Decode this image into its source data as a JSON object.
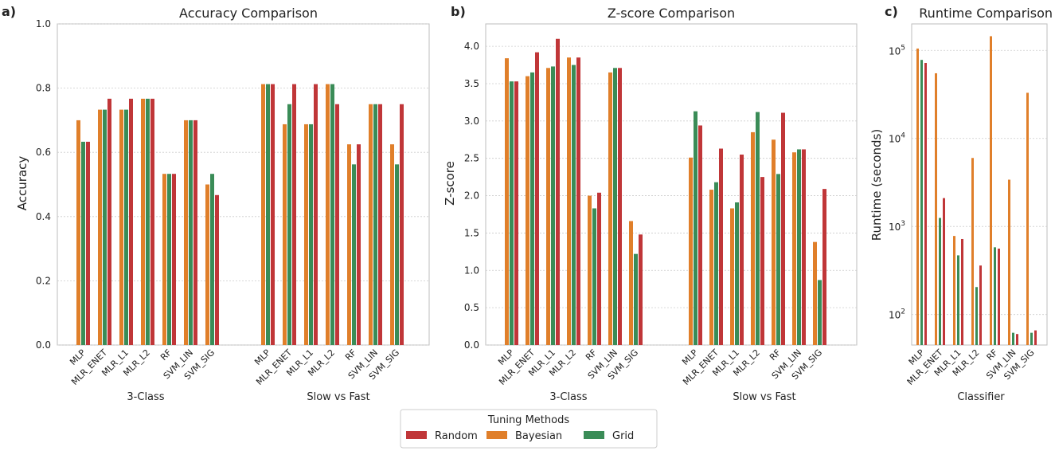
{
  "colors": {
    "Random": "#c03638",
    "Bayesian": "#e07f2a",
    "Grid": "#3a8c57",
    "grid": "#cccccc",
    "frame": "#bdbdbd"
  },
  "legend": {
    "title": "Tuning Methods",
    "items": [
      {
        "label": "Random",
        "key": "Random"
      },
      {
        "label": "Bayesian",
        "key": "Bayesian"
      },
      {
        "label": "Grid",
        "key": "Grid"
      }
    ]
  },
  "chart_data": [
    {
      "id": "a",
      "panel_label": "a)",
      "type": "bar",
      "title": "Accuracy Comparison",
      "ylabel": "Accuracy",
      "ylim": [
        0,
        1.0
      ],
      "yticks": [
        0.0,
        0.2,
        0.4,
        0.6,
        0.8,
        1.0
      ],
      "ytick_labels": [
        "0.0",
        "0.2",
        "0.4",
        "0.6",
        "0.8",
        "1.0"
      ],
      "scale": "linear",
      "groups": [
        {
          "name": "3-Class",
          "categories": [
            "MLP",
            "MLR_ENET",
            "MLR_L1",
            "MLR_L2",
            "RF",
            "SVM_LIN",
            "SVM_SIG"
          ],
          "series": [
            {
              "name": "Bayesian",
              "values": [
                0.7,
                0.733,
                0.733,
                0.767,
                0.533,
                0.7,
                0.5
              ]
            },
            {
              "name": "Grid",
              "values": [
                0.633,
                0.733,
                0.733,
                0.767,
                0.533,
                0.7,
                0.533
              ]
            },
            {
              "name": "Random",
              "values": [
                0.633,
                0.767,
                0.767,
                0.767,
                0.533,
                0.7,
                0.467
              ]
            }
          ]
        },
        {
          "name": "Slow vs Fast",
          "categories": [
            "MLP",
            "MLR_ENET",
            "MLR_L1",
            "MLR_L2",
            "RF",
            "SVM_LIN",
            "SVM_SIG"
          ],
          "series": [
            {
              "name": "Bayesian",
              "values": [
                0.8125,
                0.6875,
                0.6875,
                0.8125,
                0.625,
                0.75,
                0.625
              ]
            },
            {
              "name": "Grid",
              "values": [
                0.8125,
                0.75,
                0.6875,
                0.8125,
                0.5625,
                0.75,
                0.5625
              ]
            },
            {
              "name": "Random",
              "values": [
                0.8125,
                0.8125,
                0.8125,
                0.75,
                0.625,
                0.75,
                0.75
              ]
            }
          ]
        }
      ]
    },
    {
      "id": "b",
      "panel_label": "b)",
      "type": "bar",
      "title": "Z-score Comparison",
      "ylabel": "Z-score",
      "ylim": [
        0,
        4.3
      ],
      "yticks": [
        0.0,
        0.5,
        1.0,
        1.5,
        2.0,
        2.5,
        3.0,
        3.5,
        4.0
      ],
      "ytick_labels": [
        "0.0",
        "0.5",
        "1.0",
        "1.5",
        "2.0",
        "2.5",
        "3.0",
        "3.5",
        "4.0"
      ],
      "scale": "linear",
      "groups": [
        {
          "name": "3-Class",
          "categories": [
            "MLP",
            "MLR_ENET",
            "MLR_L1",
            "MLR_L2",
            "RF",
            "SVM_LIN",
            "SVM_SIG"
          ],
          "series": [
            {
              "name": "Bayesian",
              "values": [
                3.84,
                3.6,
                3.71,
                3.85,
                2.0,
                3.65,
                1.66
              ]
            },
            {
              "name": "Grid",
              "values": [
                3.53,
                3.65,
                3.73,
                3.75,
                1.83,
                3.71,
                1.22
              ]
            },
            {
              "name": "Random",
              "values": [
                3.53,
                3.92,
                4.1,
                3.85,
                2.04,
                3.71,
                1.48
              ]
            }
          ]
        },
        {
          "name": "Slow vs Fast",
          "categories": [
            "MLP",
            "MLR_ENET",
            "MLR_L1",
            "MLR_L2",
            "RF",
            "SVM_LIN",
            "SVM_SIG"
          ],
          "series": [
            {
              "name": "Bayesian",
              "values": [
                2.51,
                2.08,
                1.83,
                2.85,
                2.75,
                2.58,
                1.38
              ]
            },
            {
              "name": "Grid",
              "values": [
                3.13,
                2.18,
                1.91,
                3.12,
                2.29,
                2.62,
                0.87
              ]
            },
            {
              "name": "Random",
              "values": [
                2.94,
                2.63,
                2.55,
                2.25,
                3.11,
                2.62,
                2.09
              ]
            }
          ]
        }
      ]
    },
    {
      "id": "c",
      "panel_label": "c)",
      "type": "bar",
      "title": "Runtime Comparison",
      "ylabel": "Runtime (seconds)",
      "xlabel": "Classifier",
      "scale": "log",
      "ylim": [
        45,
        200000
      ],
      "yticks": [
        100,
        1000,
        10000,
        100000
      ],
      "ytick_base": "10",
      "ytick_exponents": [
        "2",
        "3",
        "4",
        "5"
      ],
      "groups": [
        {
          "name": "",
          "categories": [
            "MLP",
            "MLR_ENET",
            "MLR_L1",
            "MLR_L2",
            "RF",
            "SVM_LIN",
            "SVM_SIG"
          ],
          "series": [
            {
              "name": "Bayesian",
              "values": [
                105000,
                55000,
                780,
                6000,
                145000,
                3400,
                33000
              ]
            },
            {
              "name": "Grid",
              "values": [
                78000,
                1250,
                470,
                205,
                580,
                62,
                62
              ]
            },
            {
              "name": "Random",
              "values": [
                72000,
                2100,
                720,
                360,
                560,
                60,
                66
              ]
            }
          ]
        }
      ]
    }
  ]
}
